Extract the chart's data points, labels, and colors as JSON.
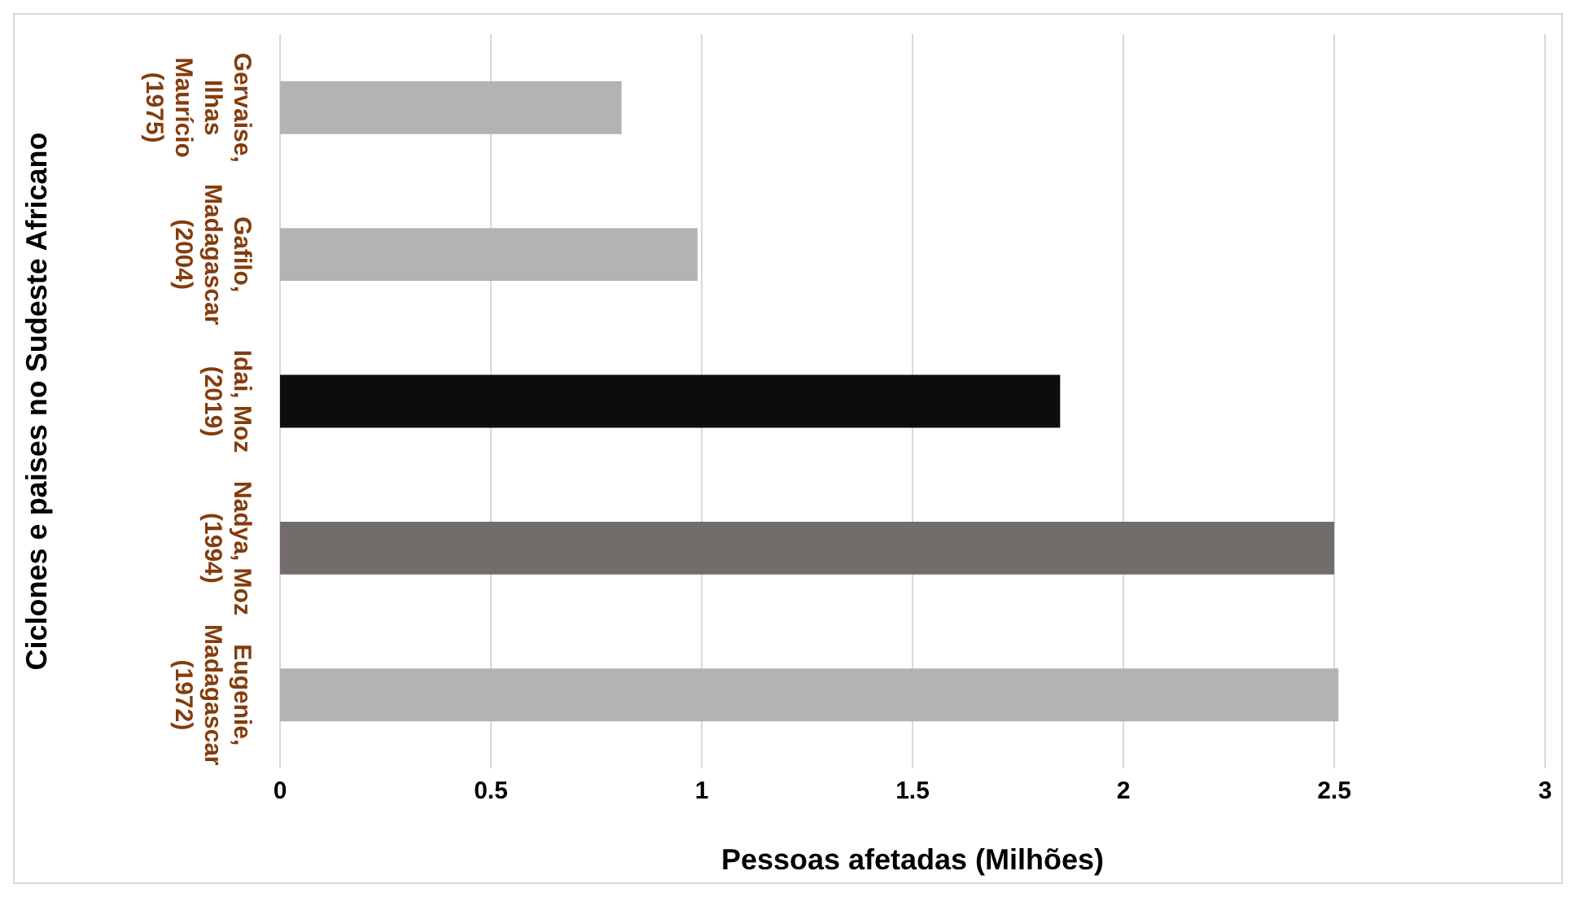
{
  "chart_data": {
    "type": "bar",
    "orientation": "horizontal",
    "xlabel": "Pessoas afetadas (Milhões)",
    "ylabel": "Ciclones e paises no Sudeste Africano",
    "categories": [
      "Gervaise, Ilhas Maurício (1975)",
      "Gafilo, Madagascar (2004)",
      "Idai, Moz (2019)",
      "Nadya, Moz (1994)",
      "Eugenie, Madagascar (1972)"
    ],
    "values": [
      0.81,
      0.99,
      1.85,
      2.5,
      2.51
    ],
    "colors": [
      "#b3b3b3",
      "#b3b3b3",
      "#0d0d0d",
      "#726d6b",
      "#b3b3b3"
    ],
    "xlim": [
      0,
      3
    ],
    "xticks": [
      0,
      0.5,
      1,
      1.5,
      2,
      2.5,
      3
    ],
    "grid": "x"
  }
}
